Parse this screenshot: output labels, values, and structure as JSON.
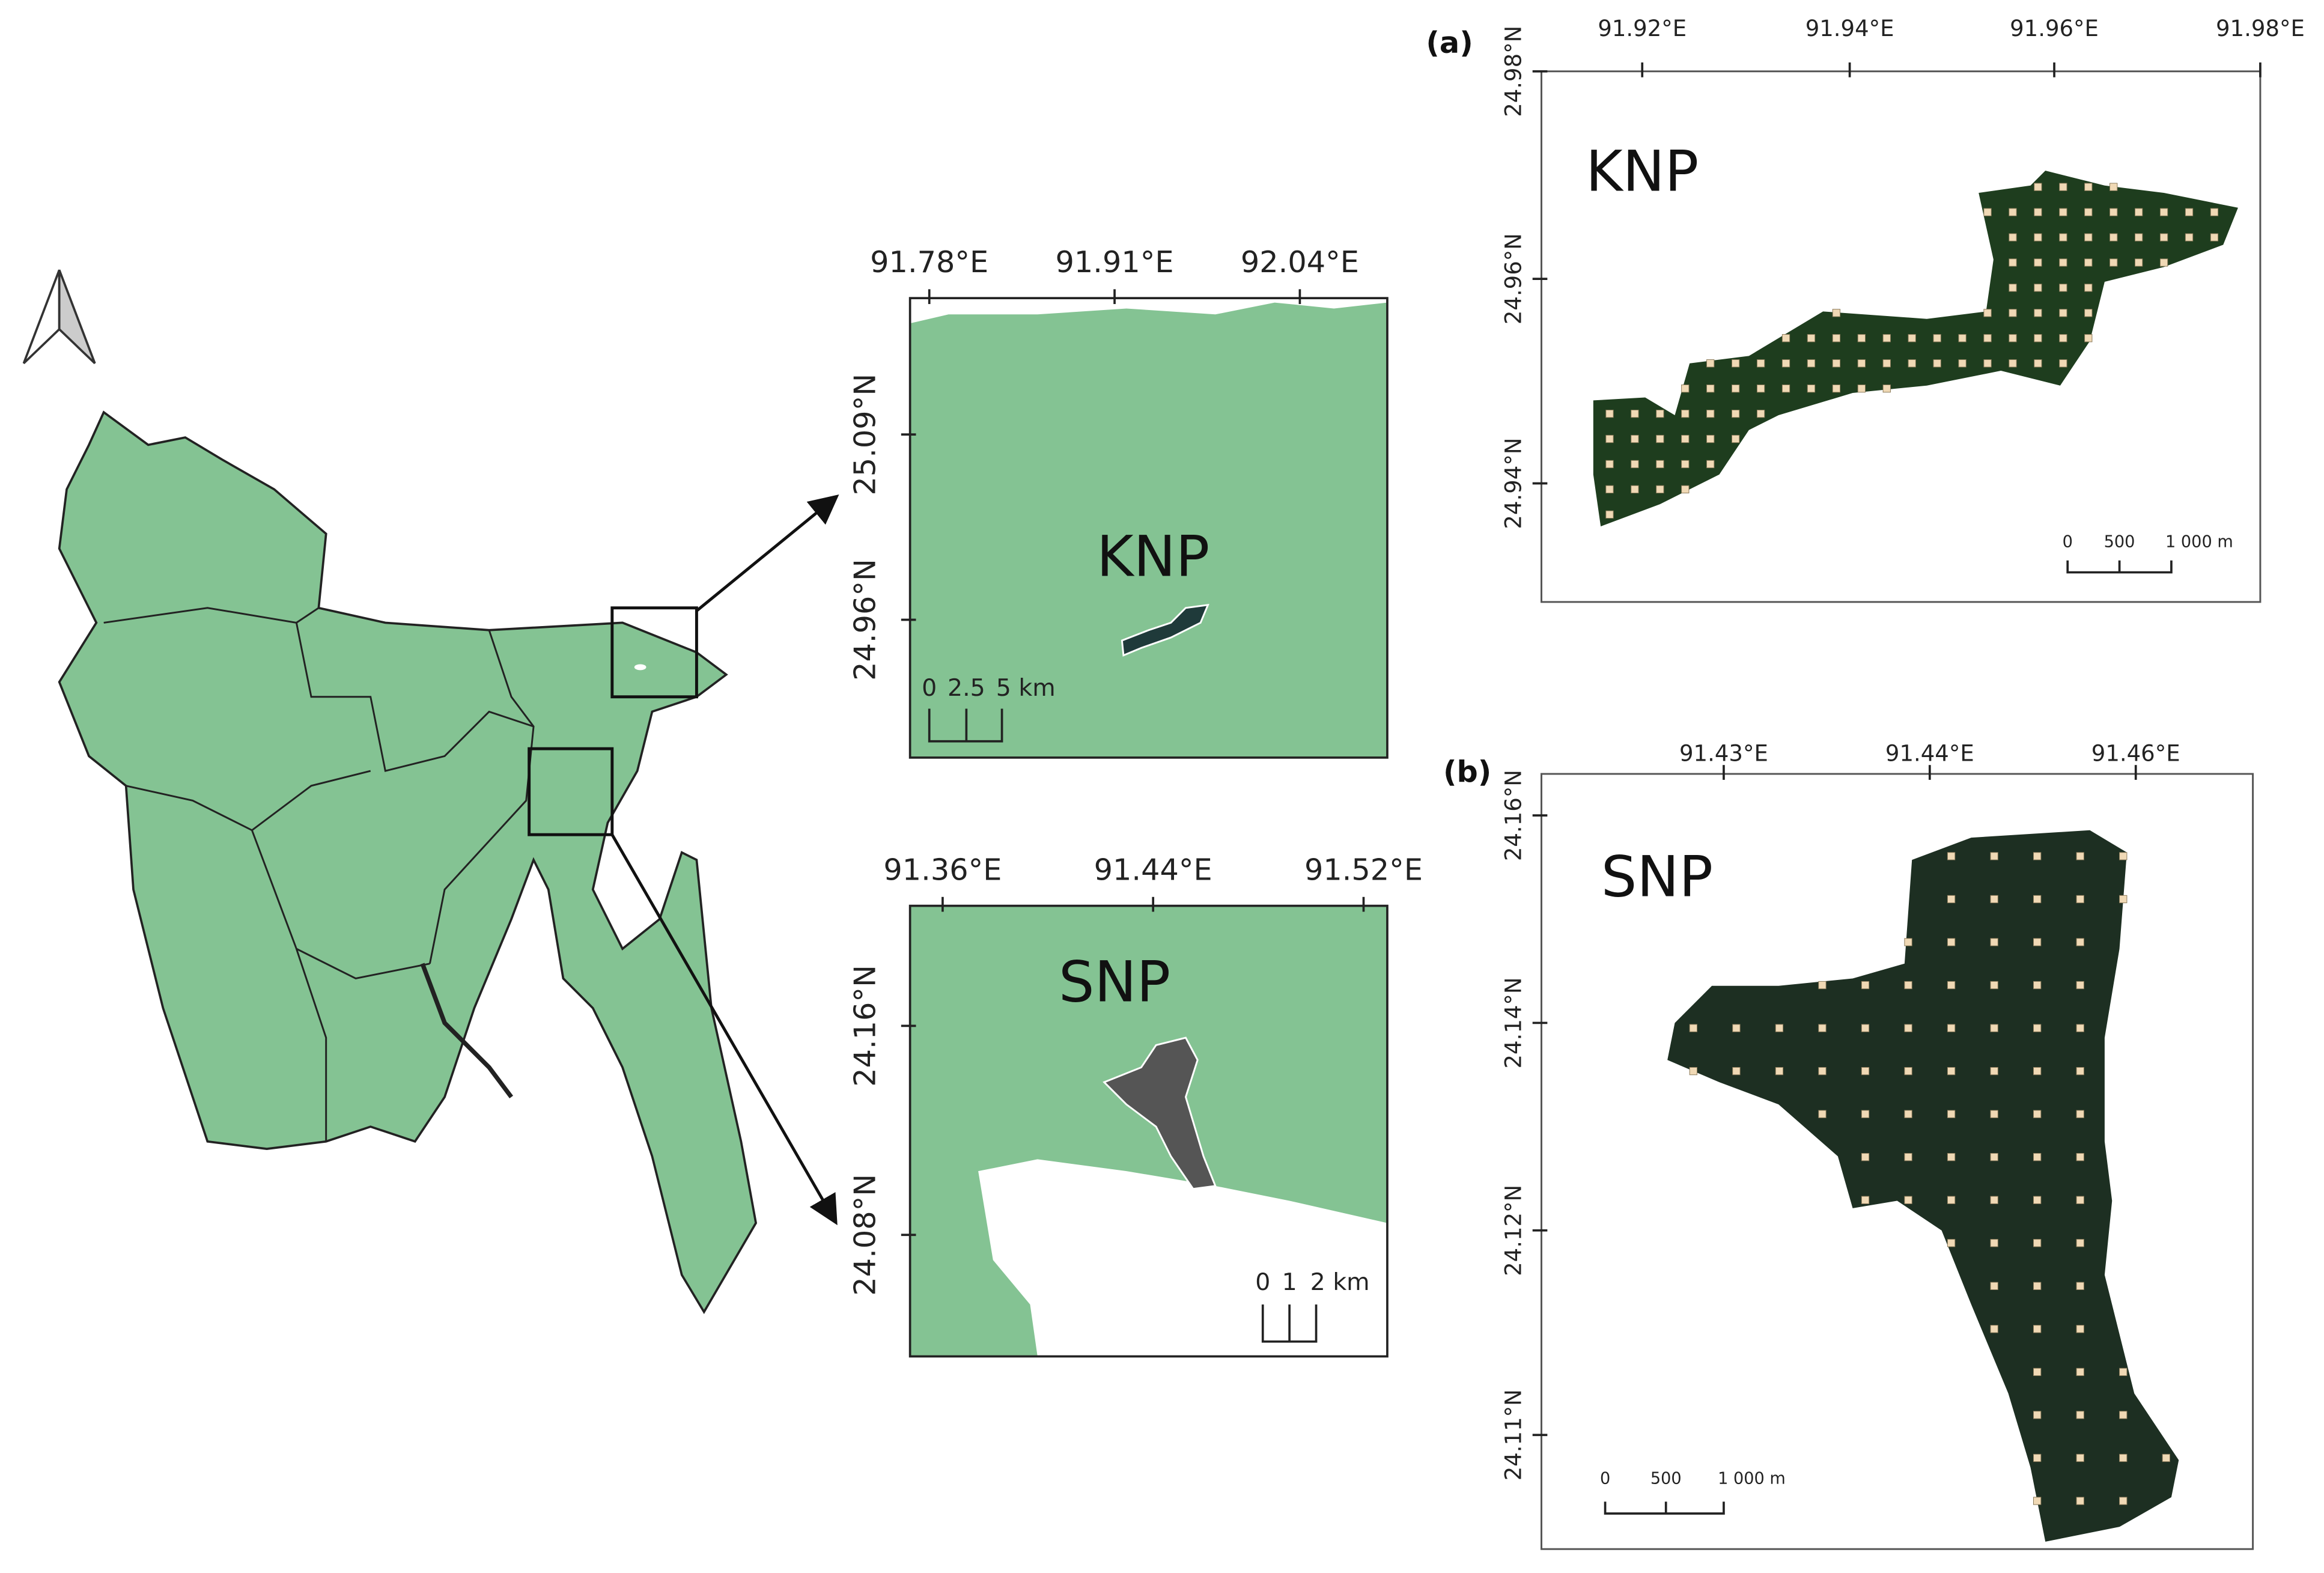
{
  "inset_knp": {
    "x_ticks": [
      "91.78°E",
      "91.91°E",
      "92.04°E"
    ],
    "y_ticks": [
      "25.09°N",
      "24.96°N"
    ],
    "label": "KNP",
    "scale_bar": [
      "0",
      "2.5",
      "5 km"
    ]
  },
  "inset_snp": {
    "x_ticks": [
      "91.36°E",
      "91.44°E",
      "91.52°E"
    ],
    "y_ticks": [
      "24.16°N",
      "24.08°N"
    ],
    "label": "SNP",
    "scale_bar": [
      "0",
      "1",
      "2 km"
    ]
  },
  "panel_a": {
    "tag": "(a)",
    "x_ticks": [
      "91.92°E",
      "91.94°E",
      "91.96°E",
      "91.98°E"
    ],
    "y_ticks": [
      "24.98°N",
      "24.96°N",
      "24.94°N"
    ],
    "label": "KNP",
    "scale_bar": [
      "0",
      "500",
      "1 000 m"
    ]
  },
  "panel_b": {
    "tag": "(b)",
    "x_ticks": [
      "91.43°E",
      "91.44°E",
      "91.46°E"
    ],
    "y_ticks": [
      "24.16°N",
      "24.14°N",
      "24.12°N",
      "24.11°N"
    ],
    "label": "SNP",
    "scale_bar": [
      "0",
      "500",
      "1 000 m"
    ]
  }
}
